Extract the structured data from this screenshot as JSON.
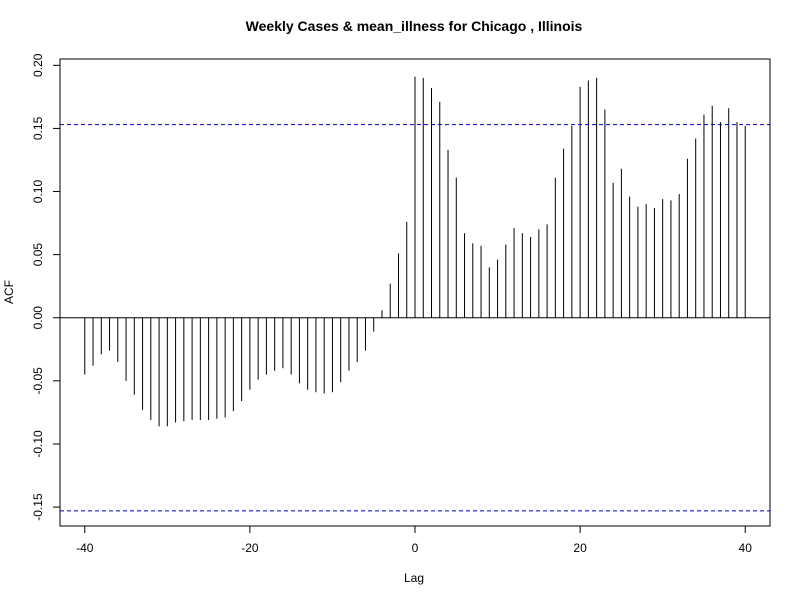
{
  "chart_data": {
    "type": "bar",
    "title": "Weekly Cases & mean_illness for Chicago , Illinois",
    "xlabel": "Lag",
    "ylabel": "ACF",
    "xlim": [
      -43,
      43
    ],
    "ylim": [
      -0.165,
      0.205
    ],
    "x_ticks": [
      -40,
      -20,
      0,
      20,
      40
    ],
    "x_tick_labels": [
      "-40",
      "-20",
      "0",
      "20",
      "40"
    ],
    "y_ticks": [
      -0.15,
      -0.1,
      -0.05,
      0.0,
      0.05,
      0.1,
      0.15,
      0.2
    ],
    "y_tick_labels": [
      "-0.15",
      "-0.10",
      "-0.05",
      "0.00",
      "0.05",
      "0.10",
      "0.15",
      "0.20"
    ],
    "confidence_bounds": [
      0.153,
      -0.153
    ],
    "bound_color": "#0000cc",
    "bar_color": "#000000",
    "x": [
      -40,
      -39,
      -38,
      -37,
      -36,
      -35,
      -34,
      -33,
      -32,
      -31,
      -30,
      -29,
      -28,
      -27,
      -26,
      -25,
      -24,
      -23,
      -22,
      -21,
      -20,
      -19,
      -18,
      -17,
      -16,
      -15,
      -14,
      -13,
      -12,
      -11,
      -10,
      -9,
      -8,
      -7,
      -6,
      -5,
      -4,
      -3,
      -2,
      -1,
      0,
      1,
      2,
      3,
      4,
      5,
      6,
      7,
      8,
      9,
      10,
      11,
      12,
      13,
      14,
      15,
      16,
      17,
      18,
      19,
      20,
      21,
      22,
      23,
      24,
      25,
      26,
      27,
      28,
      29,
      30,
      31,
      32,
      33,
      34,
      35,
      36,
      37,
      38,
      39,
      40
    ],
    "values": [
      -0.045,
      -0.038,
      -0.029,
      -0.026,
      -0.035,
      -0.05,
      -0.061,
      -0.073,
      -0.081,
      -0.086,
      -0.086,
      -0.083,
      -0.082,
      -0.081,
      -0.081,
      -0.081,
      -0.08,
      -0.079,
      -0.074,
      -0.066,
      -0.057,
      -0.049,
      -0.045,
      -0.042,
      -0.04,
      -0.045,
      -0.052,
      -0.057,
      -0.059,
      -0.06,
      -0.059,
      -0.051,
      -0.042,
      -0.035,
      -0.026,
      -0.011,
      0.006,
      0.027,
      0.051,
      0.076,
      0.191,
      0.19,
      0.182,
      0.171,
      0.133,
      0.111,
      0.067,
      0.059,
      0.057,
      0.04,
      0.046,
      0.058,
      0.071,
      0.067,
      0.064,
      0.07,
      0.074,
      0.111,
      0.134,
      0.152,
      0.183,
      0.188,
      0.19,
      0.165,
      0.107,
      0.118,
      0.096,
      0.088,
      0.09,
      0.087,
      0.094,
      0.093,
      0.098,
      0.126,
      0.142,
      0.161,
      0.168,
      0.155,
      0.166,
      0.155,
      0.152
    ]
  }
}
